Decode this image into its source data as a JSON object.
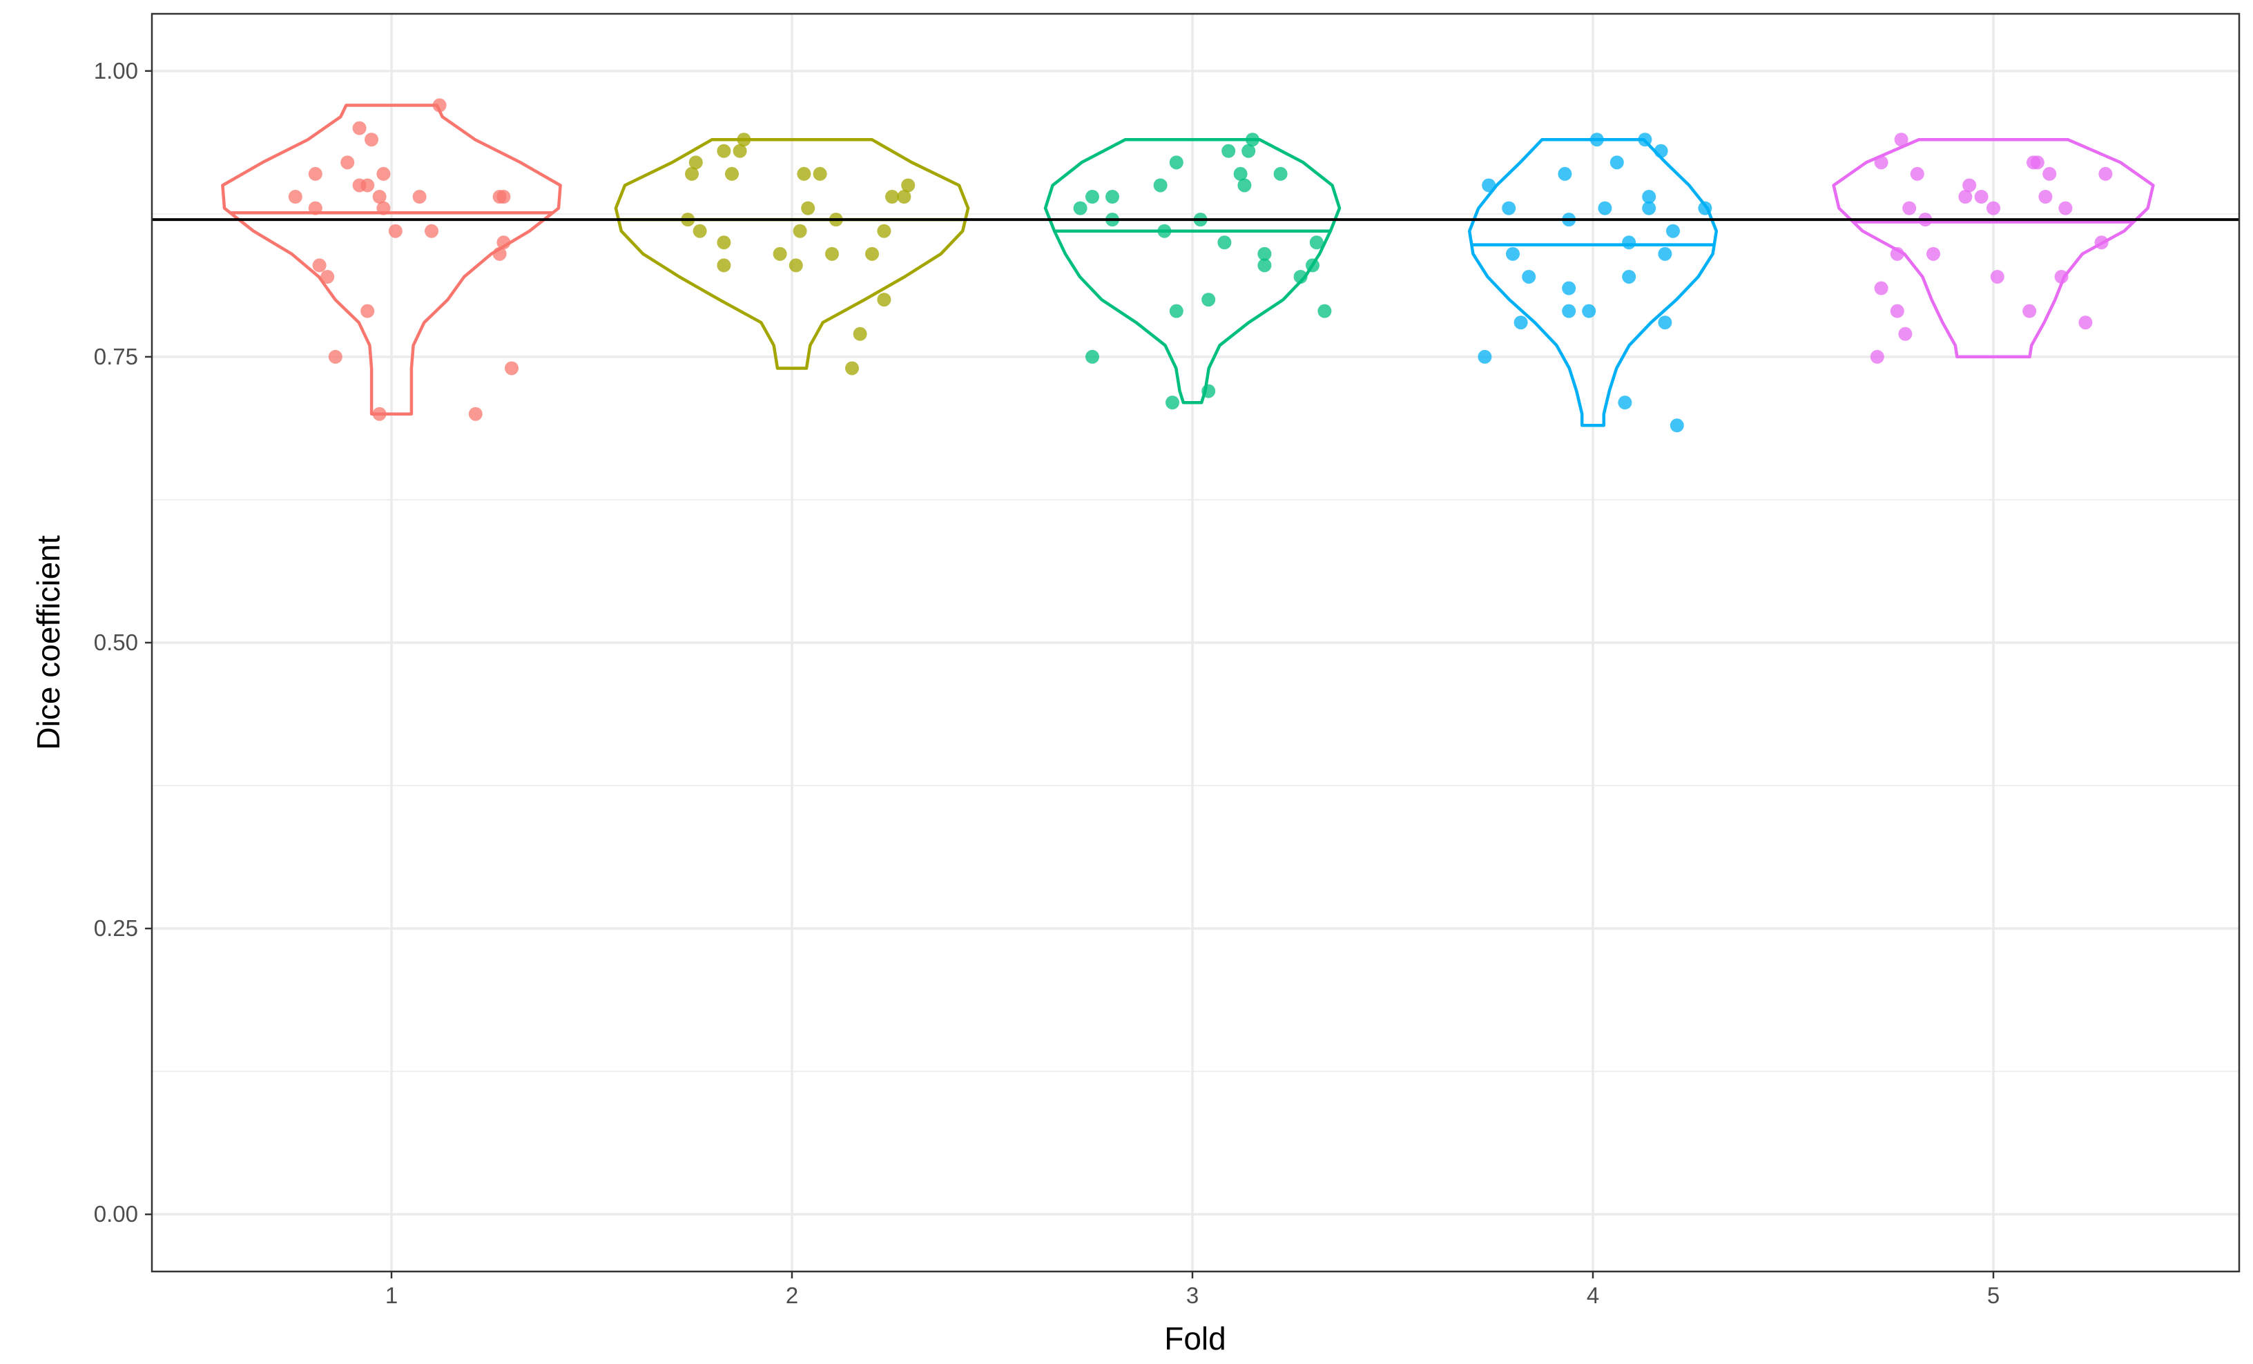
{
  "chart_data": {
    "type": "violin",
    "xlabel": "Fold",
    "ylabel": "Dice coefficient",
    "categories": [
      "1",
      "2",
      "3",
      "4",
      "5"
    ],
    "ylim": [
      -0.05,
      1.05
    ],
    "yticks": [
      0.0,
      0.25,
      0.5,
      0.75,
      1.0
    ],
    "ytick_labels": [
      "0.00",
      "0.25",
      "0.50",
      "0.75",
      "1.00"
    ],
    "grid": true,
    "legend": "none",
    "reference_line": 0.87,
    "series": [
      {
        "category": "1",
        "color": "#F8766D",
        "median": 0.876,
        "violin_profile": [
          [
            0.7,
            0.11
          ],
          [
            0.72,
            0.11
          ],
          [
            0.74,
            0.11
          ],
          [
            0.76,
            0.12
          ],
          [
            0.78,
            0.18
          ],
          [
            0.8,
            0.31
          ],
          [
            0.82,
            0.4
          ],
          [
            0.84,
            0.55
          ],
          [
            0.86,
            0.76
          ],
          [
            0.88,
            0.92
          ],
          [
            0.9,
            0.93
          ],
          [
            0.92,
            0.71
          ],
          [
            0.94,
            0.46
          ],
          [
            0.96,
            0.28
          ],
          [
            0.97,
            0.25
          ]
        ],
        "points": [
          [
            -0.24,
            0.89
          ],
          [
            -0.19,
            0.91
          ],
          [
            -0.19,
            0.88
          ],
          [
            -0.18,
            0.83
          ],
          [
            -0.16,
            0.82
          ],
          [
            -0.14,
            0.75
          ],
          [
            -0.11,
            0.92
          ],
          [
            -0.08,
            0.95
          ],
          [
            -0.08,
            0.9
          ],
          [
            -0.06,
            0.9
          ],
          [
            -0.06,
            0.79
          ],
          [
            -0.05,
            0.94
          ],
          [
            -0.03,
            0.89
          ],
          [
            -0.03,
            0.7
          ],
          [
            -0.02,
            0.91
          ],
          [
            -0.02,
            0.88
          ],
          [
            0.01,
            0.86
          ],
          [
            0.07,
            0.89
          ],
          [
            0.1,
            0.86
          ],
          [
            0.12,
            0.97
          ],
          [
            0.21,
            0.7
          ],
          [
            0.27,
            0.84
          ],
          [
            0.27,
            0.89
          ],
          [
            0.28,
            0.89
          ],
          [
            0.28,
            0.85
          ],
          [
            0.3,
            0.74
          ]
        ]
      },
      {
        "category": "2",
        "color": "#A3A500",
        "median": 0.87,
        "violin_profile": [
          [
            0.74,
            0.08
          ],
          [
            0.76,
            0.1
          ],
          [
            0.78,
            0.17
          ],
          [
            0.8,
            0.4
          ],
          [
            0.82,
            0.62
          ],
          [
            0.84,
            0.82
          ],
          [
            0.86,
            0.94
          ],
          [
            0.88,
            0.97
          ],
          [
            0.9,
            0.92
          ],
          [
            0.92,
            0.66
          ],
          [
            0.94,
            0.44
          ]
        ],
        "points": [
          [
            -0.26,
            0.87
          ],
          [
            -0.25,
            0.91
          ],
          [
            -0.24,
            0.92
          ],
          [
            -0.23,
            0.86
          ],
          [
            -0.17,
            0.93
          ],
          [
            -0.17,
            0.85
          ],
          [
            -0.17,
            0.83
          ],
          [
            -0.15,
            0.91
          ],
          [
            -0.13,
            0.93
          ],
          [
            -0.12,
            0.94
          ],
          [
            -0.03,
            0.84
          ],
          [
            0.01,
            0.83
          ],
          [
            0.02,
            0.86
          ],
          [
            0.03,
            0.91
          ],
          [
            0.04,
            0.88
          ],
          [
            0.07,
            0.91
          ],
          [
            0.1,
            0.84
          ],
          [
            0.11,
            0.87
          ],
          [
            0.15,
            0.74
          ],
          [
            0.17,
            0.77
          ],
          [
            0.2,
            0.84
          ],
          [
            0.23,
            0.86
          ],
          [
            0.23,
            0.8
          ],
          [
            0.25,
            0.89
          ],
          [
            0.28,
            0.89
          ],
          [
            0.29,
            0.9
          ]
        ]
      },
      {
        "category": "3",
        "color": "#00BF7D",
        "median": 0.86,
        "violin_profile": [
          [
            0.71,
            0.05
          ],
          [
            0.72,
            0.07
          ],
          [
            0.74,
            0.09
          ],
          [
            0.76,
            0.15
          ],
          [
            0.78,
            0.31
          ],
          [
            0.8,
            0.5
          ],
          [
            0.82,
            0.62
          ],
          [
            0.84,
            0.7
          ],
          [
            0.86,
            0.76
          ],
          [
            0.88,
            0.81
          ],
          [
            0.9,
            0.77
          ],
          [
            0.92,
            0.61
          ],
          [
            0.94,
            0.37
          ]
        ],
        "points": [
          [
            -0.28,
            0.88
          ],
          [
            -0.25,
            0.75
          ],
          [
            -0.25,
            0.89
          ],
          [
            -0.2,
            0.87
          ],
          [
            -0.2,
            0.89
          ],
          [
            -0.08,
            0.9
          ],
          [
            -0.07,
            0.86
          ],
          [
            -0.05,
            0.71
          ],
          [
            -0.04,
            0.79
          ],
          [
            -0.04,
            0.92
          ],
          [
            0.02,
            0.87
          ],
          [
            0.04,
            0.72
          ],
          [
            0.04,
            0.8
          ],
          [
            0.08,
            0.85
          ],
          [
            0.09,
            0.93
          ],
          [
            0.12,
            0.91
          ],
          [
            0.13,
            0.9
          ],
          [
            0.14,
            0.93
          ],
          [
            0.15,
            0.94
          ],
          [
            0.18,
            0.84
          ],
          [
            0.18,
            0.83
          ],
          [
            0.22,
            0.91
          ],
          [
            0.27,
            0.82
          ],
          [
            0.3,
            0.83
          ],
          [
            0.31,
            0.85
          ],
          [
            0.33,
            0.79
          ]
        ]
      },
      {
        "category": "4",
        "color": "#00B0F6",
        "median": 0.848,
        "violin_profile": [
          [
            0.69,
            0.06
          ],
          [
            0.7,
            0.06
          ],
          [
            0.72,
            0.09
          ],
          [
            0.74,
            0.13
          ],
          [
            0.76,
            0.2
          ],
          [
            0.78,
            0.32
          ],
          [
            0.8,
            0.46
          ],
          [
            0.82,
            0.58
          ],
          [
            0.84,
            0.66
          ],
          [
            0.86,
            0.68
          ],
          [
            0.88,
            0.63
          ],
          [
            0.9,
            0.53
          ],
          [
            0.92,
            0.4
          ],
          [
            0.94,
            0.28
          ]
        ],
        "points": [
          [
            -0.27,
            0.75
          ],
          [
            -0.26,
            0.9
          ],
          [
            -0.21,
            0.88
          ],
          [
            -0.2,
            0.84
          ],
          [
            -0.18,
            0.78
          ],
          [
            -0.16,
            0.82
          ],
          [
            -0.07,
            0.91
          ],
          [
            -0.06,
            0.87
          ],
          [
            -0.06,
            0.81
          ],
          [
            -0.06,
            0.79
          ],
          [
            -0.01,
            0.79
          ],
          [
            0.01,
            0.94
          ],
          [
            0.03,
            0.88
          ],
          [
            0.06,
            0.92
          ],
          [
            0.08,
            0.71
          ],
          [
            0.09,
            0.82
          ],
          [
            0.09,
            0.85
          ],
          [
            0.13,
            0.94
          ],
          [
            0.14,
            0.88
          ],
          [
            0.14,
            0.89
          ],
          [
            0.17,
            0.93
          ],
          [
            0.18,
            0.78
          ],
          [
            0.18,
            0.84
          ],
          [
            0.2,
            0.86
          ],
          [
            0.21,
            0.69
          ],
          [
            0.28,
            0.88
          ]
        ]
      },
      {
        "category": "5",
        "color": "#E76BF3",
        "median": 0.868,
        "violin_profile": [
          [
            0.75,
            0.2
          ],
          [
            0.76,
            0.21
          ],
          [
            0.78,
            0.28
          ],
          [
            0.8,
            0.34
          ],
          [
            0.82,
            0.39
          ],
          [
            0.84,
            0.49
          ],
          [
            0.86,
            0.72
          ],
          [
            0.88,
            0.85
          ],
          [
            0.9,
            0.88
          ],
          [
            0.92,
            0.7
          ],
          [
            0.94,
            0.41
          ]
        ],
        "points": [
          [
            -0.29,
            0.75
          ],
          [
            -0.28,
            0.81
          ],
          [
            -0.28,
            0.92
          ],
          [
            -0.24,
            0.84
          ],
          [
            -0.24,
            0.79
          ],
          [
            -0.23,
            0.94
          ],
          [
            -0.22,
            0.77
          ],
          [
            -0.21,
            0.88
          ],
          [
            -0.19,
            0.91
          ],
          [
            -0.17,
            0.87
          ],
          [
            -0.15,
            0.84
          ],
          [
            -0.07,
            0.89
          ],
          [
            -0.06,
            0.9
          ],
          [
            -0.03,
            0.89
          ],
          [
            0.0,
            0.88
          ],
          [
            0.01,
            0.82
          ],
          [
            0.09,
            0.79
          ],
          [
            0.1,
            0.92
          ],
          [
            0.11,
            0.92
          ],
          [
            0.13,
            0.89
          ],
          [
            0.14,
            0.91
          ],
          [
            0.17,
            0.82
          ],
          [
            0.18,
            0.88
          ],
          [
            0.23,
            0.78
          ],
          [
            0.27,
            0.85
          ],
          [
            0.28,
            0.91
          ]
        ]
      }
    ]
  }
}
